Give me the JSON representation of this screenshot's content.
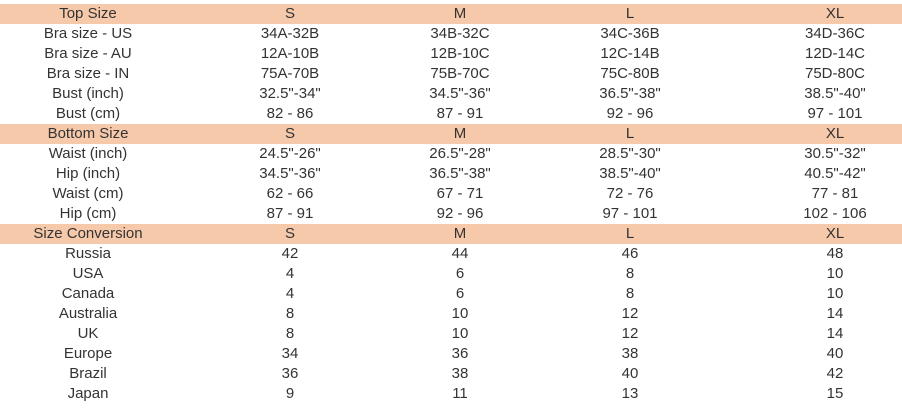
{
  "colors": {
    "header_bg": "#f7c9ab",
    "text": "#333333"
  },
  "sections": [
    {
      "header": [
        "Top Size",
        "S",
        "M",
        "L",
        "XL"
      ],
      "rows": [
        [
          "Bra size - US",
          "34A-32B",
          "34B-32C",
          "34C-36B",
          "34D-36C"
        ],
        [
          "Bra size - AU",
          "12A-10B",
          "12B-10C",
          "12C-14B",
          "12D-14C"
        ],
        [
          "Bra size - IN",
          "75A-70B",
          "75B-70C",
          "75C-80B",
          "75D-80C"
        ],
        [
          "Bust (inch)",
          "32.5\"-34\"",
          "34.5\"-36\"",
          "36.5\"-38\"",
          "38.5\"-40\""
        ],
        [
          "Bust (cm)",
          "82 - 86",
          "87 - 91",
          "92 - 96",
          "97 - 101"
        ]
      ]
    },
    {
      "header": [
        "Bottom Size",
        "S",
        "M",
        "L",
        "XL"
      ],
      "rows": [
        [
          "Waist (inch)",
          "24.5\"-26\"",
          "26.5\"-28\"",
          "28.5\"-30\"",
          "30.5\"-32\""
        ],
        [
          "Hip (inch)",
          "34.5\"-36\"",
          "36.5\"-38\"",
          "38.5\"-40\"",
          "40.5\"-42\""
        ],
        [
          "Waist (cm)",
          "62 - 66",
          "67 - 71",
          "72 - 76",
          "77 - 81"
        ],
        [
          "Hip (cm)",
          "87 - 91",
          "92 - 96",
          "97 - 101",
          "102 - 106"
        ]
      ]
    },
    {
      "header": [
        "Size Conversion",
        "S",
        "M",
        "L",
        "XL"
      ],
      "rows": [
        [
          "Russia",
          "42",
          "44",
          "46",
          "48"
        ],
        [
          "USA",
          "4",
          "6",
          "8",
          "10"
        ],
        [
          "Canada",
          "4",
          "6",
          "8",
          "10"
        ],
        [
          "Australia",
          "8",
          "10",
          "12",
          "14"
        ],
        [
          "UK",
          "8",
          "10",
          "12",
          "14"
        ],
        [
          "Europe",
          "34",
          "36",
          "38",
          "40"
        ],
        [
          "Brazil",
          "36",
          "38",
          "40",
          "42"
        ],
        [
          "Japan",
          "9",
          "11",
          "13",
          "15"
        ]
      ]
    }
  ]
}
